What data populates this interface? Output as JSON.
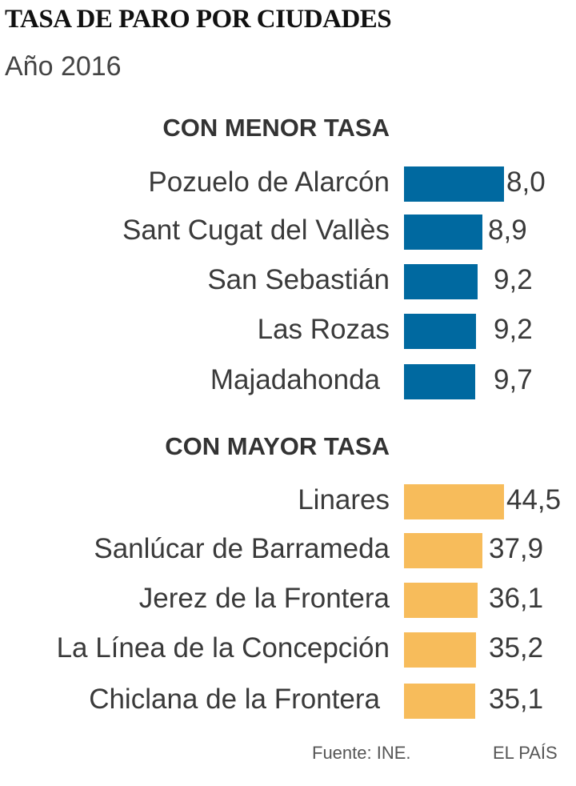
{
  "chart_data": {
    "type": "bar",
    "orientation": "horizontal",
    "title": "TASA DE PARO POR CIUDADES",
    "subtitle": "Año 2016",
    "groups": [
      {
        "heading": "CON MENOR TASA",
        "color": "#0069a0",
        "categories": [
          "Pozuelo de Alarcón",
          "Sant Cugat del Vallès",
          "San Sebastián",
          "Las Rozas",
          "Majadahonda"
        ],
        "values": [
          8.0,
          8.9,
          9.2,
          9.2,
          9.7
        ],
        "labels": [
          "8,0",
          "8,9",
          "9,2",
          "9,2",
          "9,7"
        ]
      },
      {
        "heading": "CON MAYOR TASA",
        "color": "#f7bc5b",
        "categories": [
          "Linares",
          "Sanlúcar de Barrameda",
          "Jerez de la Frontera",
          "La Línea de la Concepción",
          "Chiclana de la Frontera"
        ],
        "values": [
          44.5,
          37.9,
          36.1,
          35.2,
          35.1
        ],
        "labels": [
          "44,5",
          "37,9",
          "36,1",
          "35,2",
          "35,1"
        ]
      }
    ],
    "source": "Fuente: INE.",
    "credit": "EL PAÍS",
    "grid": false
  }
}
